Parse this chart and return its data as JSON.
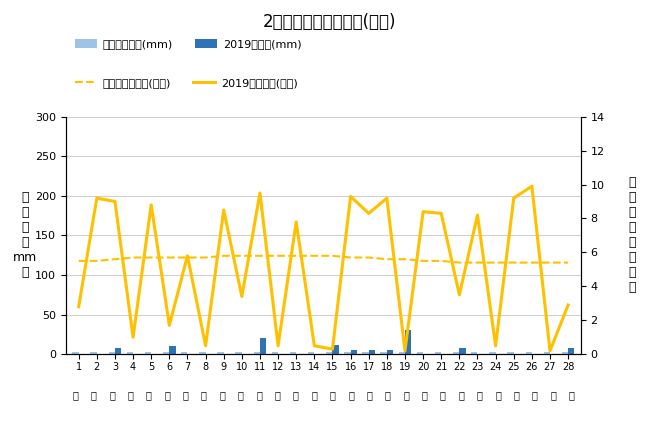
{
  "title": "2月降水量・日照時間(日別)",
  "days": [
    1,
    2,
    3,
    4,
    5,
    6,
    7,
    8,
    9,
    10,
    11,
    12,
    13,
    14,
    15,
    16,
    17,
    18,
    19,
    20,
    21,
    22,
    23,
    24,
    25,
    26,
    27,
    28
  ],
  "rainfall_2019": [
    0,
    0,
    8,
    0,
    0,
    10,
    0,
    0,
    0,
    0,
    20,
    0,
    0,
    0,
    12,
    5,
    5,
    5,
    30,
    0,
    0,
    8,
    0,
    0,
    0,
    0,
    0,
    8
  ],
  "rainfall_avg": [
    3,
    3,
    3,
    3,
    3,
    3,
    3,
    3,
    3,
    3,
    3,
    3,
    3,
    3,
    3,
    3,
    3,
    3,
    3,
    3,
    3,
    3,
    3,
    3,
    3,
    3,
    3,
    3
  ],
  "sunshine_2019": [
    2.8,
    9.2,
    9.0,
    1.0,
    8.8,
    1.7,
    5.8,
    0.5,
    8.5,
    3.4,
    9.5,
    0.5,
    7.8,
    0.5,
    0.3,
    9.3,
    8.3,
    9.2,
    0.2,
    8.4,
    8.3,
    3.5,
    8.2,
    0.5,
    9.2,
    9.9,
    0.2,
    2.9
  ],
  "sunshine_avg": [
    5.5,
    5.5,
    5.6,
    5.7,
    5.7,
    5.7,
    5.7,
    5.7,
    5.8,
    5.8,
    5.8,
    5.8,
    5.8,
    5.8,
    5.8,
    5.7,
    5.7,
    5.6,
    5.6,
    5.5,
    5.5,
    5.4,
    5.4,
    5.4,
    5.4,
    5.4,
    5.4,
    5.4
  ],
  "ylabel_left": "降\n水\n量\n（\nmm\n）",
  "ylabel_right": "日\n照\n時\n間\n（\n時\n間\n）",
  "ylim_left": [
    0,
    300
  ],
  "ylim_right": [
    0,
    14
  ],
  "yticks_left": [
    0,
    50,
    100,
    150,
    200,
    250,
    300
  ],
  "yticks_right": [
    0,
    2,
    4,
    6,
    8,
    10,
    12,
    14
  ],
  "bar_color_2019": "#2e74b5",
  "bar_color_avg": "#9dc3e6",
  "line_color_2019": "#ffc000",
  "line_color_avg_dash": "#ffc000",
  "bg_color": "#ffffff",
  "legend_labels": [
    "降水量平年値(mm)",
    "2019降水量(mm)",
    "日照時間平年値(時間)",
    "2019日照時間(時間)"
  ],
  "grid_color": "#d0d0d0"
}
